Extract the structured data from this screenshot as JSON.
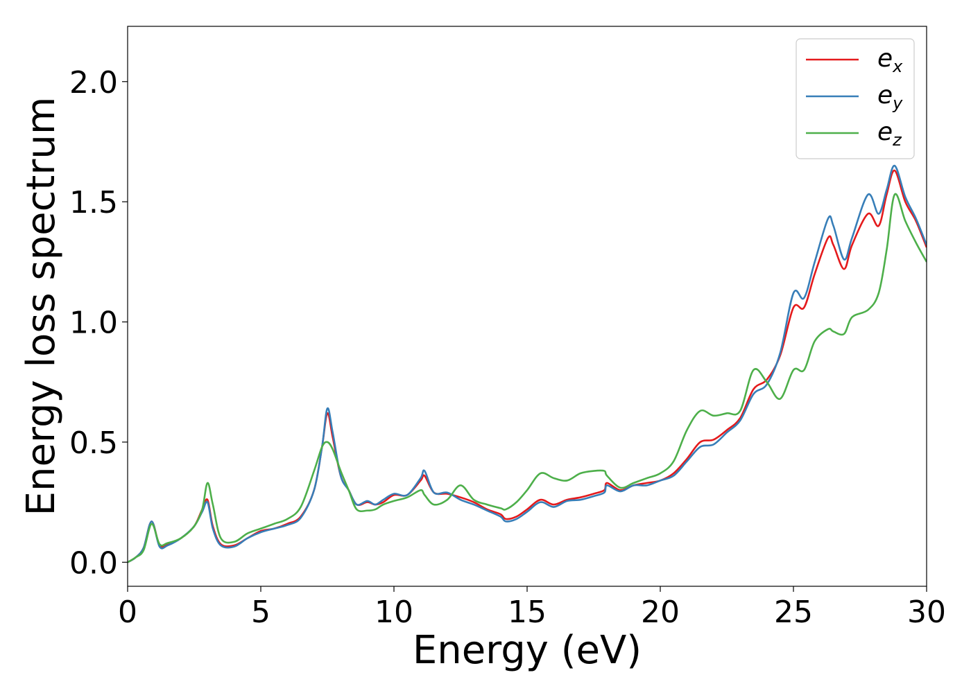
{
  "chart_data": {
    "type": "line",
    "title": "",
    "xlabel": "Energy (eV)",
    "ylabel": "Energy loss spectrum",
    "xlim": [
      0,
      30
    ],
    "ylim": [
      -0.1,
      2.23
    ],
    "xticks": [
      0,
      5,
      10,
      15,
      20,
      25,
      30
    ],
    "yticks": [
      0.0,
      0.5,
      1.0,
      1.5,
      2.0
    ],
    "xtick_labels": [
      "0",
      "5",
      "10",
      "15",
      "20",
      "25",
      "30"
    ],
    "ytick_labels": [
      "0.0",
      "0.5",
      "1.0",
      "1.5",
      "2.0"
    ],
    "grid": false,
    "legend_position": "top-right",
    "series": [
      {
        "name": "e_x",
        "label_base": "e",
        "label_sub": "x",
        "color": "#e41a1c",
        "points": [
          [
            0,
            0
          ],
          [
            0.3,
            0.02
          ],
          [
            0.6,
            0.06
          ],
          [
            0.9,
            0.17
          ],
          [
            1.2,
            0.07
          ],
          [
            1.5,
            0.075
          ],
          [
            2.0,
            0.1
          ],
          [
            2.5,
            0.15
          ],
          [
            2.8,
            0.22
          ],
          [
            3.0,
            0.26
          ],
          [
            3.2,
            0.15
          ],
          [
            3.5,
            0.075
          ],
          [
            4.0,
            0.07
          ],
          [
            4.5,
            0.1
          ],
          [
            5.0,
            0.13
          ],
          [
            5.5,
            0.14
          ],
          [
            6.0,
            0.16
          ],
          [
            6.5,
            0.19
          ],
          [
            7.0,
            0.3
          ],
          [
            7.3,
            0.48
          ],
          [
            7.5,
            0.62
          ],
          [
            7.7,
            0.52
          ],
          [
            8.0,
            0.36
          ],
          [
            8.3,
            0.3
          ],
          [
            8.6,
            0.24
          ],
          [
            9.0,
            0.25
          ],
          [
            9.3,
            0.24
          ],
          [
            9.6,
            0.25
          ],
          [
            10.0,
            0.28
          ],
          [
            10.5,
            0.28
          ],
          [
            11.0,
            0.34
          ],
          [
            11.15,
            0.36
          ],
          [
            11.5,
            0.29
          ],
          [
            12.0,
            0.285
          ],
          [
            12.5,
            0.27
          ],
          [
            13.0,
            0.25
          ],
          [
            13.5,
            0.22
          ],
          [
            14.0,
            0.2
          ],
          [
            14.2,
            0.18
          ],
          [
            14.6,
            0.19
          ],
          [
            15.0,
            0.22
          ],
          [
            15.5,
            0.26
          ],
          [
            16.0,
            0.24
          ],
          [
            16.5,
            0.26
          ],
          [
            17.0,
            0.27
          ],
          [
            17.5,
            0.285
          ],
          [
            17.9,
            0.3
          ],
          [
            18.0,
            0.33
          ],
          [
            18.5,
            0.3
          ],
          [
            19.0,
            0.32
          ],
          [
            19.5,
            0.33
          ],
          [
            20.0,
            0.34
          ],
          [
            20.5,
            0.37
          ],
          [
            21.0,
            0.43
          ],
          [
            21.5,
            0.5
          ],
          [
            22.0,
            0.51
          ],
          [
            22.5,
            0.55
          ],
          [
            23.0,
            0.6
          ],
          [
            23.5,
            0.72
          ],
          [
            24.0,
            0.76
          ],
          [
            24.5,
            0.86
          ],
          [
            25.0,
            1.06
          ],
          [
            25.4,
            1.06
          ],
          [
            25.8,
            1.2
          ],
          [
            26.3,
            1.35
          ],
          [
            26.5,
            1.32
          ],
          [
            26.9,
            1.22
          ],
          [
            27.2,
            1.32
          ],
          [
            27.8,
            1.45
          ],
          [
            28.2,
            1.4
          ],
          [
            28.5,
            1.53
          ],
          [
            28.8,
            1.63
          ],
          [
            29.2,
            1.5
          ],
          [
            29.6,
            1.42
          ],
          [
            30.0,
            1.31
          ]
        ]
      },
      {
        "name": "e_y",
        "label_base": "e",
        "label_sub": "y",
        "color": "#377eb8",
        "points": [
          [
            0,
            0
          ],
          [
            0.3,
            0.02
          ],
          [
            0.6,
            0.06
          ],
          [
            0.9,
            0.17
          ],
          [
            1.2,
            0.065
          ],
          [
            1.5,
            0.07
          ],
          [
            2.0,
            0.1
          ],
          [
            2.5,
            0.15
          ],
          [
            2.8,
            0.21
          ],
          [
            3.0,
            0.25
          ],
          [
            3.2,
            0.14
          ],
          [
            3.5,
            0.07
          ],
          [
            4.0,
            0.065
          ],
          [
            4.5,
            0.1
          ],
          [
            5.0,
            0.125
          ],
          [
            5.5,
            0.14
          ],
          [
            6.0,
            0.155
          ],
          [
            6.5,
            0.185
          ],
          [
            7.0,
            0.3
          ],
          [
            7.3,
            0.48
          ],
          [
            7.5,
            0.64
          ],
          [
            7.7,
            0.54
          ],
          [
            8.0,
            0.36
          ],
          [
            8.3,
            0.3
          ],
          [
            8.6,
            0.24
          ],
          [
            9.0,
            0.255
          ],
          [
            9.3,
            0.24
          ],
          [
            9.6,
            0.26
          ],
          [
            10.0,
            0.285
          ],
          [
            10.5,
            0.28
          ],
          [
            11.0,
            0.35
          ],
          [
            11.15,
            0.38
          ],
          [
            11.5,
            0.29
          ],
          [
            12.0,
            0.29
          ],
          [
            12.5,
            0.26
          ],
          [
            13.0,
            0.24
          ],
          [
            13.5,
            0.215
          ],
          [
            14.0,
            0.19
          ],
          [
            14.2,
            0.17
          ],
          [
            14.6,
            0.18
          ],
          [
            15.0,
            0.21
          ],
          [
            15.5,
            0.25
          ],
          [
            16.0,
            0.23
          ],
          [
            16.5,
            0.255
          ],
          [
            17.0,
            0.26
          ],
          [
            17.5,
            0.275
          ],
          [
            17.9,
            0.29
          ],
          [
            18.0,
            0.32
          ],
          [
            18.5,
            0.295
          ],
          [
            19.0,
            0.32
          ],
          [
            19.5,
            0.32
          ],
          [
            20.0,
            0.34
          ],
          [
            20.5,
            0.36
          ],
          [
            21.0,
            0.42
          ],
          [
            21.5,
            0.48
          ],
          [
            22.0,
            0.49
          ],
          [
            22.5,
            0.54
          ],
          [
            23.0,
            0.59
          ],
          [
            23.5,
            0.7
          ],
          [
            24.0,
            0.74
          ],
          [
            24.5,
            0.87
          ],
          [
            25.0,
            1.12
          ],
          [
            25.4,
            1.1
          ],
          [
            25.8,
            1.25
          ],
          [
            26.3,
            1.43
          ],
          [
            26.5,
            1.4
          ],
          [
            26.9,
            1.26
          ],
          [
            27.2,
            1.35
          ],
          [
            27.8,
            1.53
          ],
          [
            28.2,
            1.45
          ],
          [
            28.5,
            1.55
          ],
          [
            28.8,
            1.65
          ],
          [
            29.2,
            1.52
          ],
          [
            29.6,
            1.43
          ],
          [
            30.0,
            1.32
          ]
        ]
      },
      {
        "name": "e_z",
        "label_base": "e",
        "label_sub": "z",
        "color": "#4daf4a",
        "points": [
          [
            0,
            0
          ],
          [
            0.3,
            0.02
          ],
          [
            0.6,
            0.05
          ],
          [
            0.9,
            0.16
          ],
          [
            1.2,
            0.075
          ],
          [
            1.5,
            0.08
          ],
          [
            2.0,
            0.1
          ],
          [
            2.5,
            0.15
          ],
          [
            2.8,
            0.22
          ],
          [
            3.0,
            0.33
          ],
          [
            3.2,
            0.24
          ],
          [
            3.5,
            0.1
          ],
          [
            4.0,
            0.085
          ],
          [
            4.5,
            0.12
          ],
          [
            5.0,
            0.14
          ],
          [
            5.5,
            0.16
          ],
          [
            6.0,
            0.18
          ],
          [
            6.5,
            0.23
          ],
          [
            7.0,
            0.38
          ],
          [
            7.3,
            0.48
          ],
          [
            7.5,
            0.5
          ],
          [
            7.7,
            0.47
          ],
          [
            8.0,
            0.38
          ],
          [
            8.3,
            0.3
          ],
          [
            8.6,
            0.22
          ],
          [
            9.0,
            0.215
          ],
          [
            9.3,
            0.22
          ],
          [
            9.6,
            0.24
          ],
          [
            10.0,
            0.255
          ],
          [
            10.5,
            0.27
          ],
          [
            11.0,
            0.3
          ],
          [
            11.15,
            0.28
          ],
          [
            11.5,
            0.24
          ],
          [
            12.0,
            0.26
          ],
          [
            12.5,
            0.32
          ],
          [
            13.0,
            0.26
          ],
          [
            13.5,
            0.24
          ],
          [
            14.0,
            0.225
          ],
          [
            14.2,
            0.22
          ],
          [
            14.6,
            0.25
          ],
          [
            15.0,
            0.3
          ],
          [
            15.5,
            0.37
          ],
          [
            16.0,
            0.35
          ],
          [
            16.5,
            0.34
          ],
          [
            17.0,
            0.37
          ],
          [
            17.5,
            0.38
          ],
          [
            17.9,
            0.38
          ],
          [
            18.0,
            0.36
          ],
          [
            18.5,
            0.31
          ],
          [
            19.0,
            0.33
          ],
          [
            19.5,
            0.35
          ],
          [
            20.0,
            0.37
          ],
          [
            20.5,
            0.42
          ],
          [
            21.0,
            0.55
          ],
          [
            21.5,
            0.63
          ],
          [
            22.0,
            0.61
          ],
          [
            22.5,
            0.62
          ],
          [
            23.0,
            0.63
          ],
          [
            23.5,
            0.8
          ],
          [
            24.0,
            0.75
          ],
          [
            24.5,
            0.68
          ],
          [
            25.0,
            0.8
          ],
          [
            25.4,
            0.8
          ],
          [
            25.8,
            0.92
          ],
          [
            26.3,
            0.97
          ],
          [
            26.5,
            0.96
          ],
          [
            26.9,
            0.95
          ],
          [
            27.2,
            1.02
          ],
          [
            27.8,
            1.05
          ],
          [
            28.2,
            1.12
          ],
          [
            28.5,
            1.3
          ],
          [
            28.8,
            1.53
          ],
          [
            29.2,
            1.42
          ],
          [
            29.6,
            1.33
          ],
          [
            30.0,
            1.25
          ]
        ]
      }
    ]
  }
}
